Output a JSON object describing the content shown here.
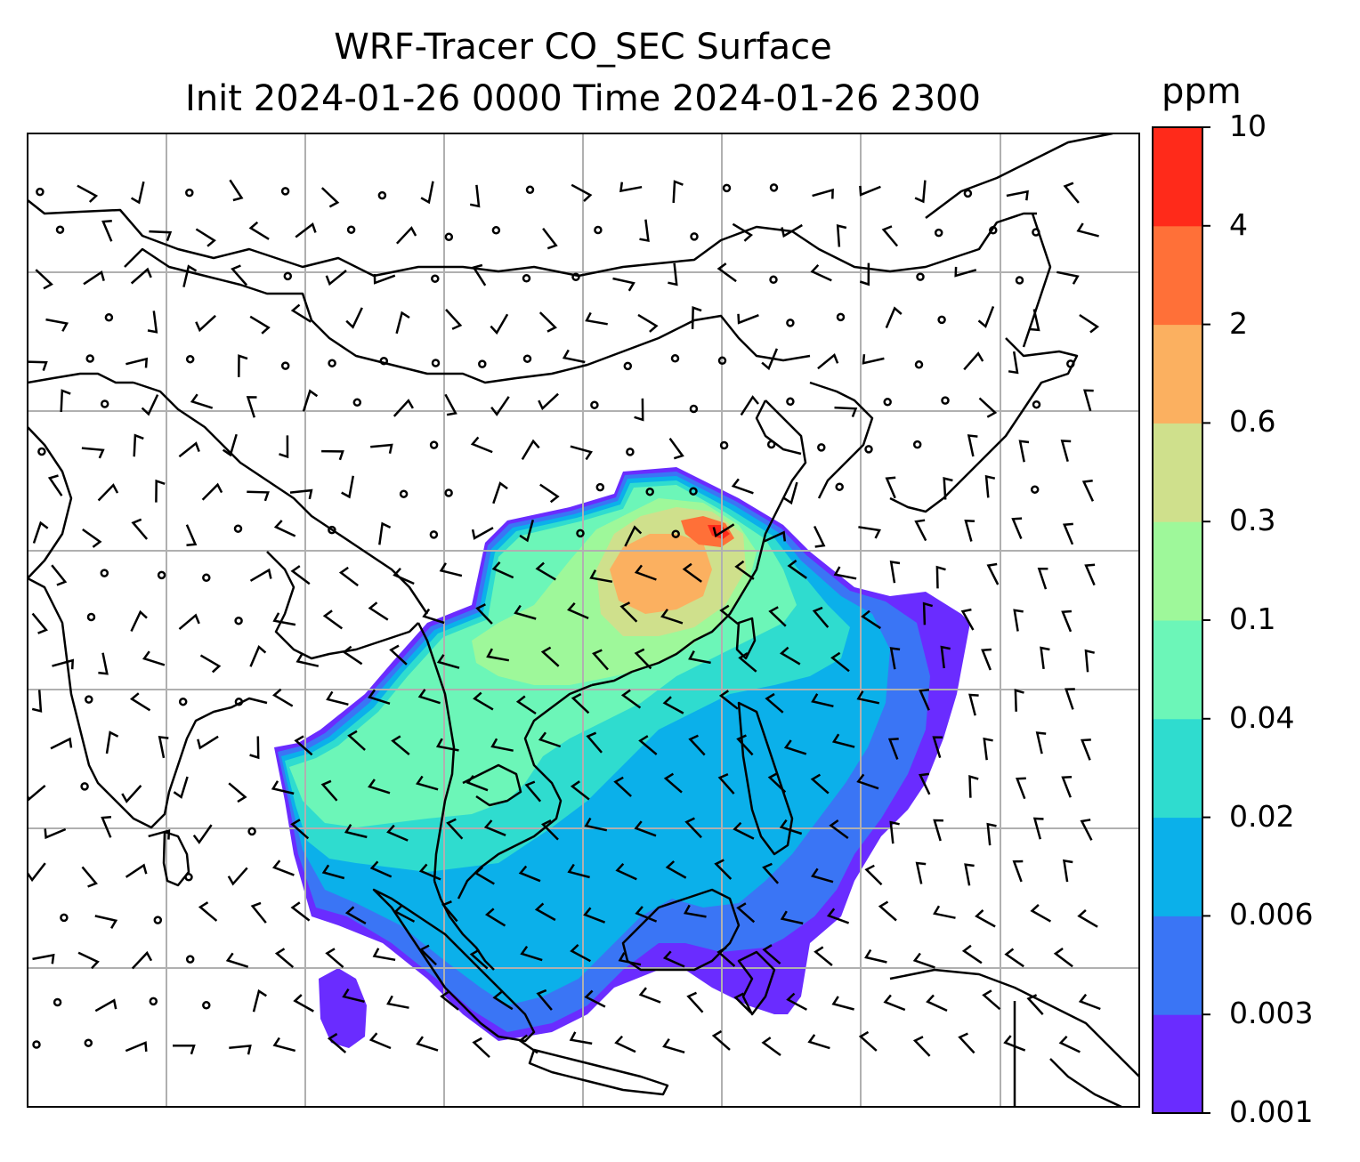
{
  "title_line1": "WRF-Tracer CO_SEC Surface",
  "title_line2": "Init 2024-01-26 0000 Time 2024-01-26 2300",
  "colorbar": {
    "unit": "ppm",
    "levels": [
      "0.001",
      "0.003",
      "0.006",
      "0.02",
      "0.04",
      "0.1",
      "0.3",
      "0.6",
      "2",
      "4",
      "10"
    ],
    "colors": [
      "#6a2cff",
      "#3a75f5",
      "#0bb0ea",
      "#2fdccf",
      "#6cf6b8",
      "#9ef89a",
      "#cfe08c",
      "#fbb060",
      "#ff7038",
      "#ff2a1a"
    ]
  },
  "map": {
    "gridlines": true,
    "coastline_color": "#000000",
    "wind_barbs": true
  }
}
